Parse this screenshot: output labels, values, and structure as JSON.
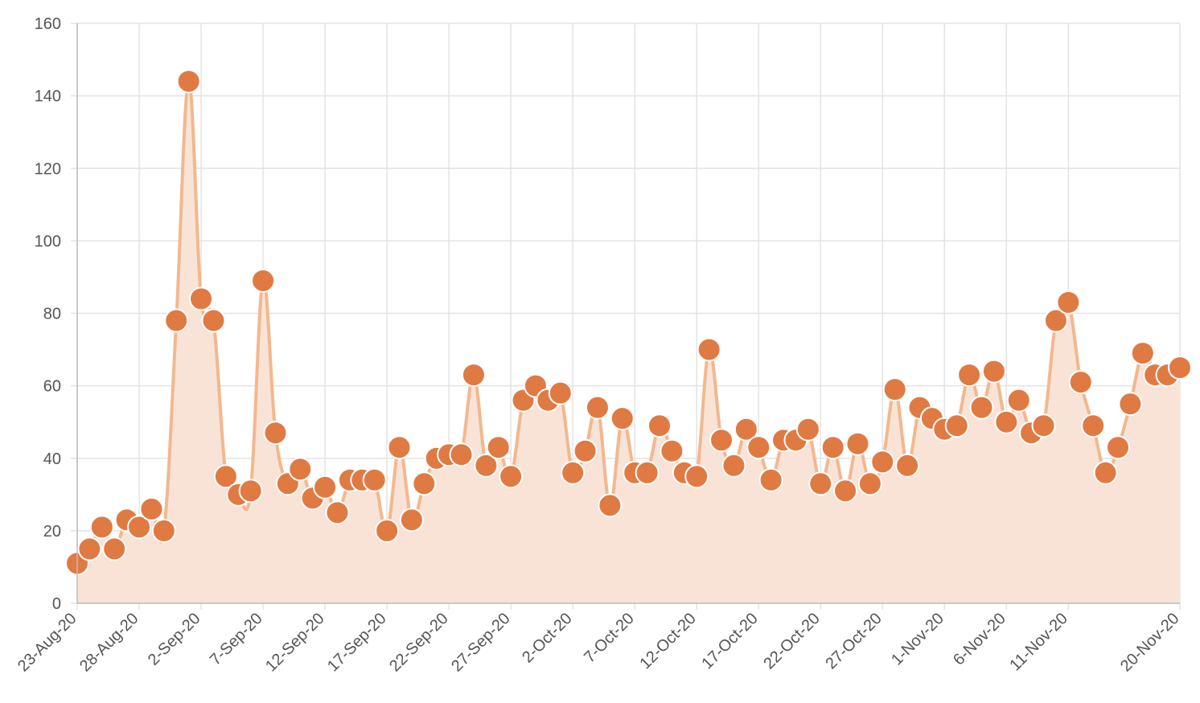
{
  "chart_data": {
    "type": "area",
    "title": "",
    "xlabel": "",
    "ylabel": "",
    "ylim": [
      0,
      160
    ],
    "y_ticks": [
      0,
      20,
      40,
      60,
      80,
      100,
      120,
      140,
      160
    ],
    "x_tick_labels": [
      "23-Aug-20",
      "28-Aug-20",
      "2-Sep-20",
      "7-Sep-20",
      "12-Sep-20",
      "17-Sep-20",
      "22-Sep-20",
      "27-Sep-20",
      "2-Oct-20",
      "7-Oct-20",
      "12-Oct-20",
      "17-Oct-20",
      "22-Oct-20",
      "27-Oct-20",
      "1-Nov-20",
      "6-Nov-20",
      "11-Nov-20",
      "20-Nov-20"
    ],
    "x_tick_dates": [
      "2020-08-23",
      "2020-08-28",
      "2020-09-02",
      "2020-09-07",
      "2020-09-12",
      "2020-09-17",
      "2020-09-22",
      "2020-09-27",
      "2020-10-02",
      "2020-10-07",
      "2020-10-12",
      "2020-10-17",
      "2020-10-22",
      "2020-10-27",
      "2020-11-01",
      "2020-11-06",
      "2020-11-11",
      "2020-11-20"
    ],
    "xlim": [
      "2020-08-23",
      "2020-11-20"
    ],
    "grid": true,
    "legend": "none",
    "colors": {
      "point": "#e07a43",
      "line": "#f1b88f",
      "area": "#f9e3d6"
    },
    "series": [
      {
        "x": [
          "2020-08-23",
          "2020-08-24",
          "2020-08-25",
          "2020-08-26",
          "2020-08-27",
          "2020-08-28",
          "2020-08-29",
          "2020-08-30",
          "2020-08-31",
          "2020-09-01",
          "2020-09-02",
          "2020-09-03",
          "2020-09-04",
          "2020-09-05",
          "2020-09-06",
          "2020-09-07",
          "2020-09-08",
          "2020-09-09",
          "2020-09-10",
          "2020-09-11",
          "2020-09-12",
          "2020-09-13",
          "2020-09-14",
          "2020-09-15",
          "2020-09-16",
          "2020-09-17",
          "2020-09-18",
          "2020-09-19",
          "2020-09-20",
          "2020-09-21",
          "2020-09-22",
          "2020-09-23",
          "2020-09-24",
          "2020-09-25",
          "2020-09-26",
          "2020-09-27",
          "2020-09-28",
          "2020-09-29",
          "2020-09-30",
          "2020-10-01",
          "2020-10-02",
          "2020-10-03",
          "2020-10-04",
          "2020-10-05",
          "2020-10-06",
          "2020-10-07",
          "2020-10-08",
          "2020-10-09",
          "2020-10-10",
          "2020-10-11",
          "2020-10-12",
          "2020-10-13",
          "2020-10-14",
          "2020-10-15",
          "2020-10-16",
          "2020-10-17",
          "2020-10-18",
          "2020-10-19",
          "2020-10-20",
          "2020-10-21",
          "2020-10-22",
          "2020-10-23",
          "2020-10-24",
          "2020-10-25",
          "2020-10-26",
          "2020-10-27",
          "2020-10-28",
          "2020-10-29",
          "2020-10-30",
          "2020-10-31",
          "2020-11-01",
          "2020-11-02",
          "2020-11-03",
          "2020-11-04",
          "2020-11-05",
          "2020-11-06",
          "2020-11-07",
          "2020-11-08",
          "2020-11-09",
          "2020-11-10",
          "2020-11-11",
          "2020-11-12",
          "2020-11-13",
          "2020-11-14",
          "2020-11-15",
          "2020-11-16",
          "2020-11-17",
          "2020-11-18",
          "2020-11-19",
          "2020-11-20"
        ],
        "values": [
          11,
          15,
          21,
          15,
          23,
          21,
          26,
          20,
          78,
          144,
          84,
          78,
          35,
          30,
          31,
          89,
          47,
          33,
          37,
          29,
          32,
          25,
          34,
          34,
          34,
          20,
          43,
          23,
          33,
          40,
          41,
          41,
          63,
          38,
          43,
          35,
          56,
          60,
          56,
          58,
          36,
          42,
          54,
          27,
          51,
          36,
          36,
          49,
          42,
          36,
          35,
          70,
          45,
          38,
          48,
          43,
          34,
          45,
          45,
          48,
          33,
          43,
          31,
          44,
          33,
          39,
          59,
          38,
          54,
          51,
          48,
          49,
          63,
          54,
          64,
          50,
          56,
          47,
          49,
          78,
          83,
          61,
          49,
          36,
          43,
          55,
          69,
          63,
          63,
          65
        ]
      }
    ]
  }
}
